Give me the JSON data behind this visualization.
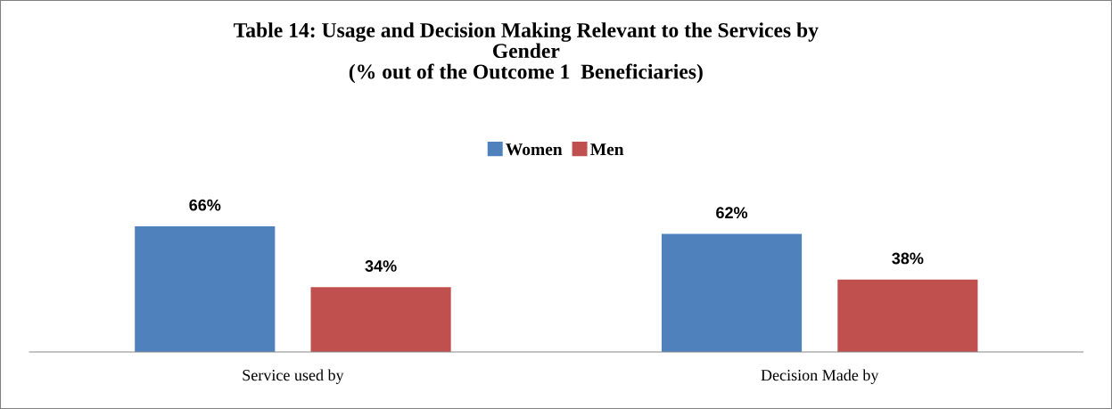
{
  "chart_data": {
    "type": "bar",
    "title": "Table 14: Usage and Decision Making Relevant to the Services by\nGender\n(% out of the Outcome 1  Beneficiaries)",
    "categories": [
      "Service used by",
      "Decision Made by"
    ],
    "series": [
      {
        "name": "Women",
        "color": "#4f81bd",
        "values": [
          66,
          62
        ],
        "value_labels": [
          "66%",
          "62%"
        ]
      },
      {
        "name": "Men",
        "color": "#c0504d",
        "values": [
          34,
          38
        ],
        "value_labels": [
          "34%",
          "38%"
        ]
      }
    ],
    "grid": false,
    "legend": "top"
  }
}
